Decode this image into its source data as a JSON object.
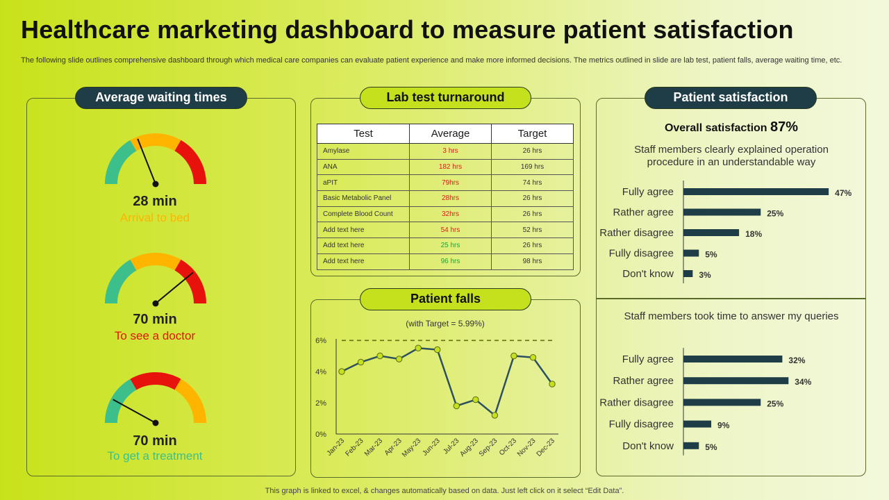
{
  "title": "Healthcare marketing dashboard to measure patient satisfaction",
  "subtitle": "The following slide outlines comprehensive dashboard through which medical care companies can evaluate patient experience and make more informed decisions. The metrics outlined in slide are lab test, patient falls, average waiting time, etc.",
  "footer": "This graph is linked to excel, & changes automatically based on data. Just left click on it select “Edit Data”.",
  "colors": {
    "dark_teal": "#1e3d46",
    "lime": "#c5e01c",
    "gauge_green": "#3dbf8c",
    "gauge_orange": "#ffb400",
    "gauge_red": "#e8120c",
    "bar": "#1e3d46",
    "line": "#2d5060"
  },
  "waiting": {
    "header": "Average waiting times",
    "gauges": [
      {
        "value": "28 min",
        "label": "Arrival to bed",
        "label_color": "#ffb400",
        "needle_fraction": 0.38
      },
      {
        "value": "70 min",
        "label": "To see a doctor",
        "label_color": "#e8120c",
        "needle_fraction": 0.78
      },
      {
        "value": "70 min",
        "label": "To get a treatment",
        "label_color": "#3dbf8c",
        "needle_fraction": 0.16
      }
    ]
  },
  "lab": {
    "header": "Lab test turnaround",
    "columns": [
      "Test",
      "Average",
      "Target"
    ],
    "rows": [
      {
        "test": "Amylase",
        "average": "3 hrs",
        "avg_status": "red",
        "target": "26 hrs"
      },
      {
        "test": "ANA",
        "average": "182 hrs",
        "avg_status": "red",
        "target": "169 hrs"
      },
      {
        "test": "aPIT",
        "average": "79hrs",
        "avg_status": "red",
        "target": "74 hrs"
      },
      {
        "test": "Basic Metabolic Panel",
        "average": "28hrs",
        "avg_status": "red",
        "target": "26 hrs"
      },
      {
        "test": "Complete  Blood Count",
        "average": "32hrs",
        "avg_status": "red",
        "target": "26 hrs"
      },
      {
        "test": "Add text here",
        "average": "54 hrs",
        "avg_status": "red",
        "target": "52 hrs"
      },
      {
        "test": "Add text here",
        "average": "25 hrs",
        "avg_status": "green",
        "target": "26 hrs"
      },
      {
        "test": "Add text here",
        "average": "96 hrs",
        "avg_status": "green",
        "target": "98 hrs"
      }
    ]
  },
  "falls": {
    "header": "Patient falls"
  },
  "satisfaction": {
    "header": "Patient satisfaction",
    "overall_label": "Overall satisfaction",
    "overall_value": "87%",
    "q1": "Staff members clearly explained operation procedure in an understandable way",
    "q2": "Staff members took time to answer my queries"
  },
  "chart_data": [
    {
      "type": "line",
      "title": "(with Target  = 5.99%)",
      "x": [
        "Jan-23",
        "Feb-23",
        "Mar-23",
        "Apr-23",
        "May-23",
        "Jun-23",
        "Jul-23",
        "Aug-23",
        "Sep-23",
        "Oct-23",
        "Nov-23",
        "Dec-23"
      ],
      "series": [
        {
          "values": [
            4.0,
            4.6,
            5.0,
            4.8,
            5.5,
            5.4,
            1.8,
            2.2,
            1.2,
            5.0,
            4.9,
            3.2
          ]
        }
      ],
      "target": 5.99,
      "ylim": [
        0,
        6
      ],
      "yticks": [
        "0%",
        "2%",
        "4%",
        "6%"
      ],
      "grid": false
    },
    {
      "type": "bar",
      "orientation": "horizontal",
      "title": "Staff members clearly explained operation procedure in an understandable way",
      "categories": [
        "Fully agree",
        "Rather agree",
        "Rather disagree",
        "Fully disagree",
        "Don't know"
      ],
      "values": [
        47,
        25,
        18,
        5,
        3
      ],
      "value_labels": [
        "47%",
        "25%",
        "18%",
        "5%",
        "3%"
      ]
    },
    {
      "type": "bar",
      "orientation": "horizontal",
      "title": "Staff members took time to answer my queries",
      "categories": [
        "Fully agree",
        "Rather agree",
        "Rather disagree",
        "Fully disagree",
        "Don't know"
      ],
      "values": [
        32,
        34,
        25,
        9,
        5
      ],
      "value_labels": [
        "32%",
        "34%",
        "25%",
        "9%",
        "5%"
      ]
    }
  ]
}
